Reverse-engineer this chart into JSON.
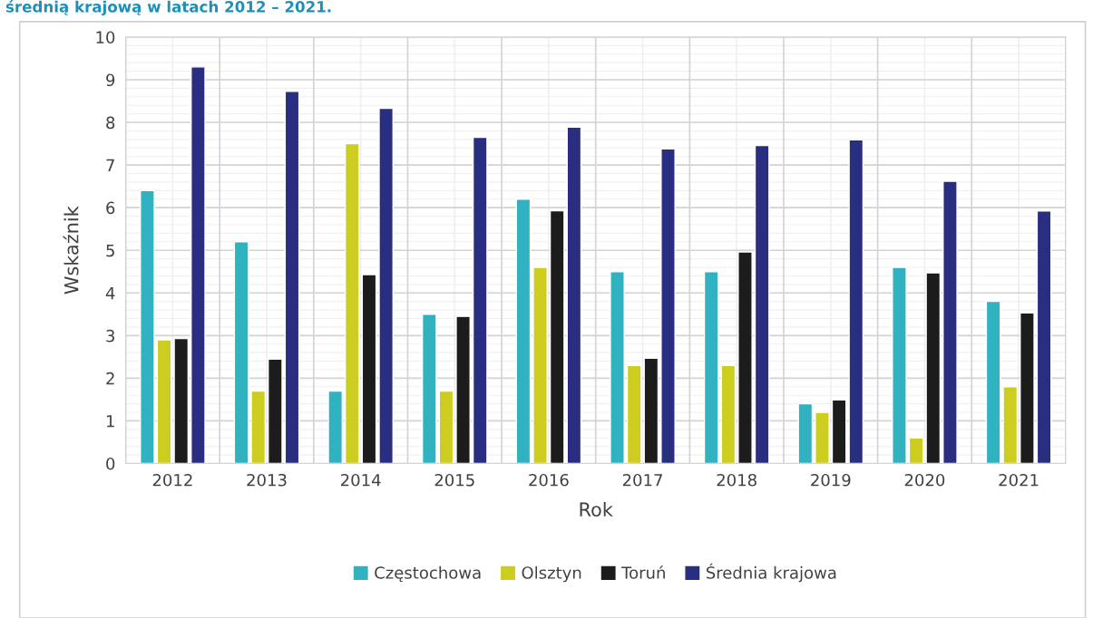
{
  "chart_data": {
    "type": "bar",
    "title": "średnią krajową w latach 2012 – 2021.",
    "xlabel": "Rok",
    "ylabel": "Wskaźnik",
    "categories": [
      "2012",
      "2013",
      "2014",
      "2015",
      "2016",
      "2017",
      "2018",
      "2019",
      "2020",
      "2021"
    ],
    "series": [
      {
        "name": "Częstochowa",
        "color": "#31b2c1",
        "values": [
          6.4,
          5.2,
          1.7,
          3.5,
          6.2,
          4.5,
          4.5,
          1.4,
          4.6,
          3.8
        ]
      },
      {
        "name": "Olsztyn",
        "color": "#cdcd1f",
        "values": [
          2.9,
          1.7,
          7.5,
          1.7,
          4.6,
          2.3,
          2.3,
          1.2,
          0.6,
          1.8
        ]
      },
      {
        "name": "Toruń",
        "color": "#1c1c1c",
        "values": [
          2.93,
          2.45,
          4.43,
          3.45,
          5.93,
          2.47,
          4.96,
          1.49,
          4.47,
          3.53
        ]
      },
      {
        "name": "Średnia krajowa",
        "color": "#2a2e80",
        "values": [
          9.3,
          8.73,
          8.33,
          7.65,
          7.89,
          7.38,
          7.46,
          7.59,
          6.62,
          5.92
        ]
      }
    ],
    "ylim": [
      0,
      10
    ],
    "yticks": [
      0,
      1,
      2,
      3,
      4,
      5,
      6,
      7,
      8,
      9,
      10
    ],
    "grid": true,
    "legend": "bottom"
  }
}
